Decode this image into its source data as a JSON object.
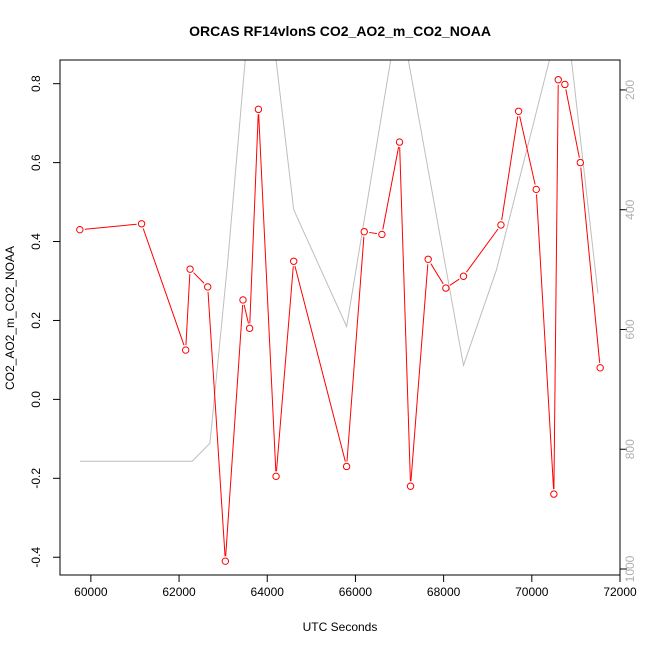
{
  "chart_data": {
    "type": "line",
    "title": "ORCAS RF14vlonS CO2_AO2_m_CO2_NOAA",
    "xlabel": "UTC Seconds",
    "ylabel": "CO2_AO2_m_CO2_NOAA",
    "xlim": [
      59300,
      72000
    ],
    "ylim": [
      -0.445,
      0.86
    ],
    "xticks": [
      60000,
      62000,
      64000,
      66000,
      68000,
      70000,
      72000
    ],
    "yticks": [
      -0.4,
      -0.2,
      0.0,
      0.2,
      0.4,
      0.6,
      0.8
    ],
    "xtick_labels": [
      "60000",
      "62000",
      "64000",
      "66000",
      "68000",
      "70000",
      "72000"
    ],
    "ytick_labels": [
      "-0.4",
      "-0.2",
      "0.0",
      "0.2",
      "0.4",
      "0.6",
      "0.8"
    ],
    "y2lim": [
      1010,
      150
    ],
    "y2ticks": [
      200,
      400,
      600,
      800,
      1000
    ],
    "y2tick_labels": [
      "200",
      "400",
      "600",
      "800",
      "1000"
    ],
    "grid": false,
    "series": [
      {
        "color": "#ff0000",
        "axis": "left",
        "markers": "open-circle",
        "x": [
          59750,
          61150,
          62150,
          62250,
          62650,
          63050,
          63450,
          63600,
          63800,
          64200,
          64600,
          65800,
          66200,
          66600,
          67000,
          67250,
          67650,
          68050,
          68450,
          69300,
          69700,
          70100,
          70500,
          70600,
          70750,
          71100,
          71550
        ],
        "y": [
          0.43,
          0.445,
          0.125,
          0.33,
          0.285,
          -0.41,
          0.252,
          0.18,
          0.735,
          -0.195,
          0.35,
          -0.17,
          0.425,
          0.418,
          0.652,
          -0.22,
          0.355,
          0.282,
          0.312,
          0.442,
          0.73,
          0.532,
          -0.24,
          0.81,
          0.798,
          0.6,
          0.08
        ]
      },
      {
        "color": "#bebebe",
        "axis": "right",
        "markers": "none",
        "x": [
          59750,
          62300,
          62700,
          63100,
          63500,
          64200,
          64600,
          65800,
          66800,
          67200,
          68450,
          69200,
          70400,
          70900,
          71500
        ],
        "y": [
          820,
          820,
          790,
          490,
          150,
          150,
          400,
          595,
          150,
          150,
          660,
          500,
          150,
          150,
          540
        ]
      }
    ]
  }
}
